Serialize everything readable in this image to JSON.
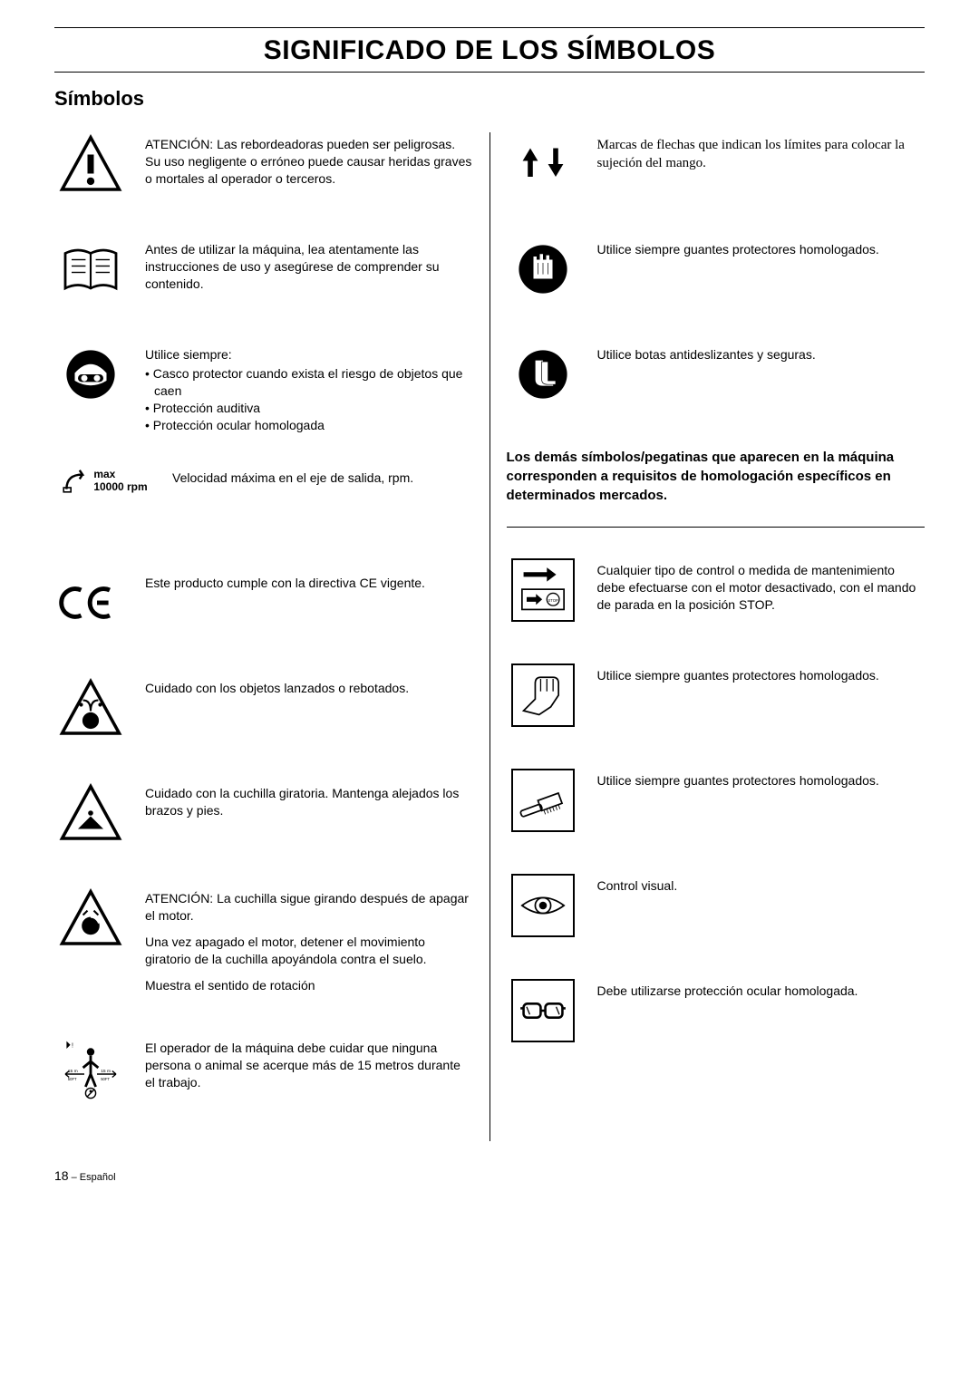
{
  "page": {
    "title": "SIGNIFICADO DE LOS SÍMBOLOS",
    "subtitle": "Símbolos",
    "footer_page": "18",
    "footer_lang": " – Español"
  },
  "left": [
    {
      "icon": "warning-triangle",
      "text": "ATENCIÓN: Las rebordeadoras pueden ser peligrosas.\nSu uso negligente o erróneo puede causar heridas graves o mortales al operador o terceros."
    },
    {
      "icon": "manual-book",
      "text": "Antes de utilizar la máquina, lea atentamente las instrucciones de uso y asegúrese de comprender su contenido."
    },
    {
      "icon": "helmet-goggles",
      "intro": "Utilice siempre:",
      "bullets": [
        "Casco protector cuando exista el riesgo de objetos que caen",
        "Protección auditiva",
        "Protección ocular homologada"
      ]
    },
    {
      "icon": "rpm",
      "rpm_max": "max",
      "rpm_val": "10000 rpm",
      "text": "Velocidad máxima en el eje de salida, rpm."
    },
    {
      "icon": "ce-mark",
      "text": "Este producto cumple con la directiva CE vigente."
    },
    {
      "icon": "thrown-objects",
      "text": "Cuidado con los objetos lanzados o rebotados."
    },
    {
      "icon": "rotating-blade",
      "text": "Cuidado con la cuchilla giratoria. Mantenga alejados los brazos y pies."
    },
    {
      "icon": "blade-after-off",
      "paras": [
        "ATENCIÓN: La cuchilla sigue girando después de apagar el motor.",
        "Una vez apagado el motor, detener el movimiento giratorio de la cuchilla apoyándola contra el suelo.",
        "Muestra el sentido de rotación"
      ]
    },
    {
      "icon": "distance-15m",
      "text": "El operador de la máquina debe cuidar que ninguna persona o animal se acerque más de 15 metros durante el trabajo."
    }
  ],
  "right_top": [
    {
      "icon": "arrows-up-down",
      "text_serif": "Marcas de flechas que indican los límites para colocar la sujeción del mango."
    },
    {
      "icon": "gloves-circle",
      "text": "Utilice siempre guantes protectores homologados."
    },
    {
      "icon": "boots-circle",
      "text": "Utilice botas antideslizantes y seguras."
    }
  ],
  "right_bold": "Los demás símbolos/pegatinas que aparecen en la máquina corresponden a requisitos de homologación específicos en determinados mercados.",
  "right_bottom": [
    {
      "icon": "stop-control",
      "text": "Cualquier tipo de control o medida de mantenimiento debe efectuarse con el motor desactivado, con el mando de parada en la posición STOP."
    },
    {
      "icon": "glove-hand",
      "text": "Utilice siempre guantes protectores homologados."
    },
    {
      "icon": "brush",
      "text": "Utilice siempre guantes protectores homologados."
    },
    {
      "icon": "eye",
      "text": "Control visual."
    },
    {
      "icon": "goggles",
      "text": "Debe utilizarse protección ocular homologada."
    }
  ]
}
